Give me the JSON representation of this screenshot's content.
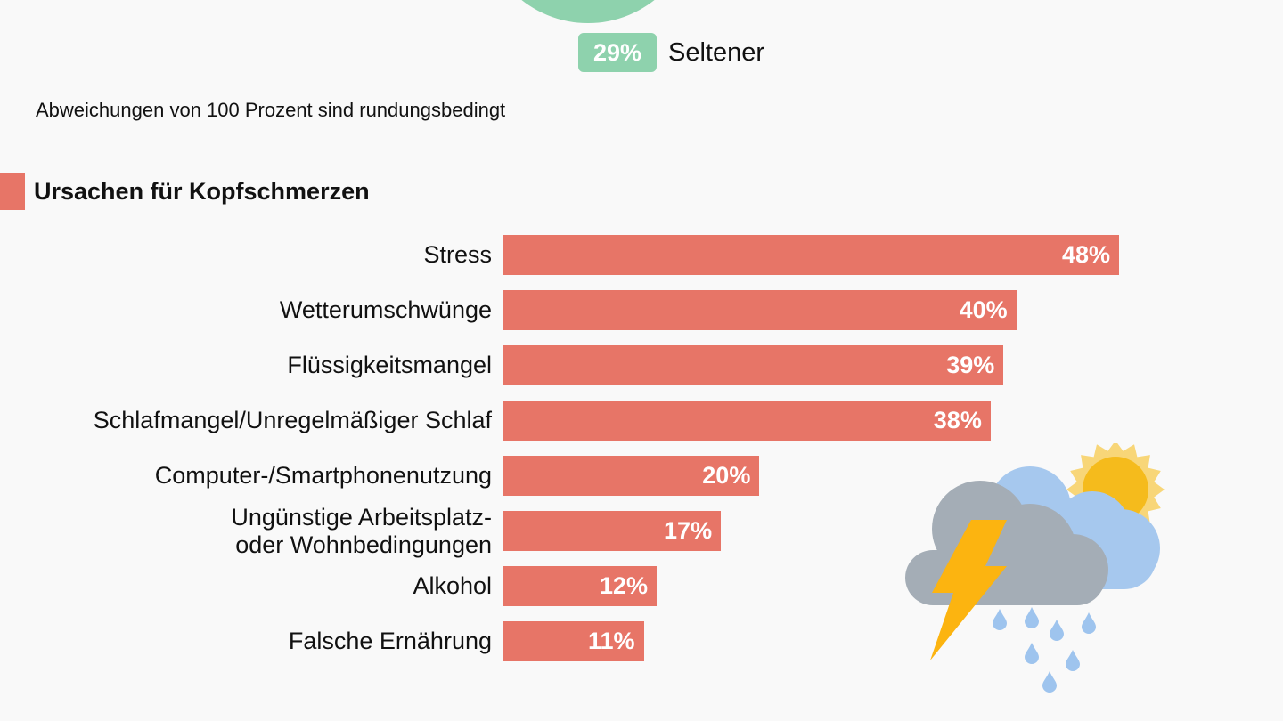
{
  "colors": {
    "background": "#f9f9f9",
    "bar": "#e77567",
    "green": "#8ed2ad",
    "text": "#111111",
    "cloud_dark": "#a4adb6",
    "cloud_light": "#a6c8ee",
    "sun": "#f5bb1c",
    "sun_rays": "#f8d678",
    "bolt": "#fcb410",
    "drops": "#9ec4ee"
  },
  "legend": {
    "value": "29%",
    "label": "Seltener"
  },
  "note": "Abweichungen von 100 Prozent sind rundungsbedingt",
  "section_title": "Ursachen für Kopfschmerzen",
  "weather_icon": "thunderstorm-cloud-with-sun-icon",
  "chart_data": {
    "type": "bar",
    "orientation": "horizontal",
    "title": "Ursachen für Kopfschmerzen",
    "categories": [
      "Stress",
      "Wetterumschwünge",
      "Flüssigkeitsmangel",
      "Schlafmangel/Unregelmäßiger Schlaf",
      "Computer-/Smartphonenutzung",
      "Ungünstige Arbeitsplatz-\noder Wohnbedingungen",
      "Alkohol",
      "Falsche Ernährung"
    ],
    "values": [
      48,
      40,
      39,
      38,
      20,
      17,
      12,
      11
    ],
    "value_labels": [
      "48%",
      "40%",
      "39%",
      "38%",
      "20%",
      "17%",
      "12%",
      "11%"
    ],
    "unit": "%",
    "xlim": [
      0,
      100
    ],
    "grid": false,
    "legend": "none"
  }
}
